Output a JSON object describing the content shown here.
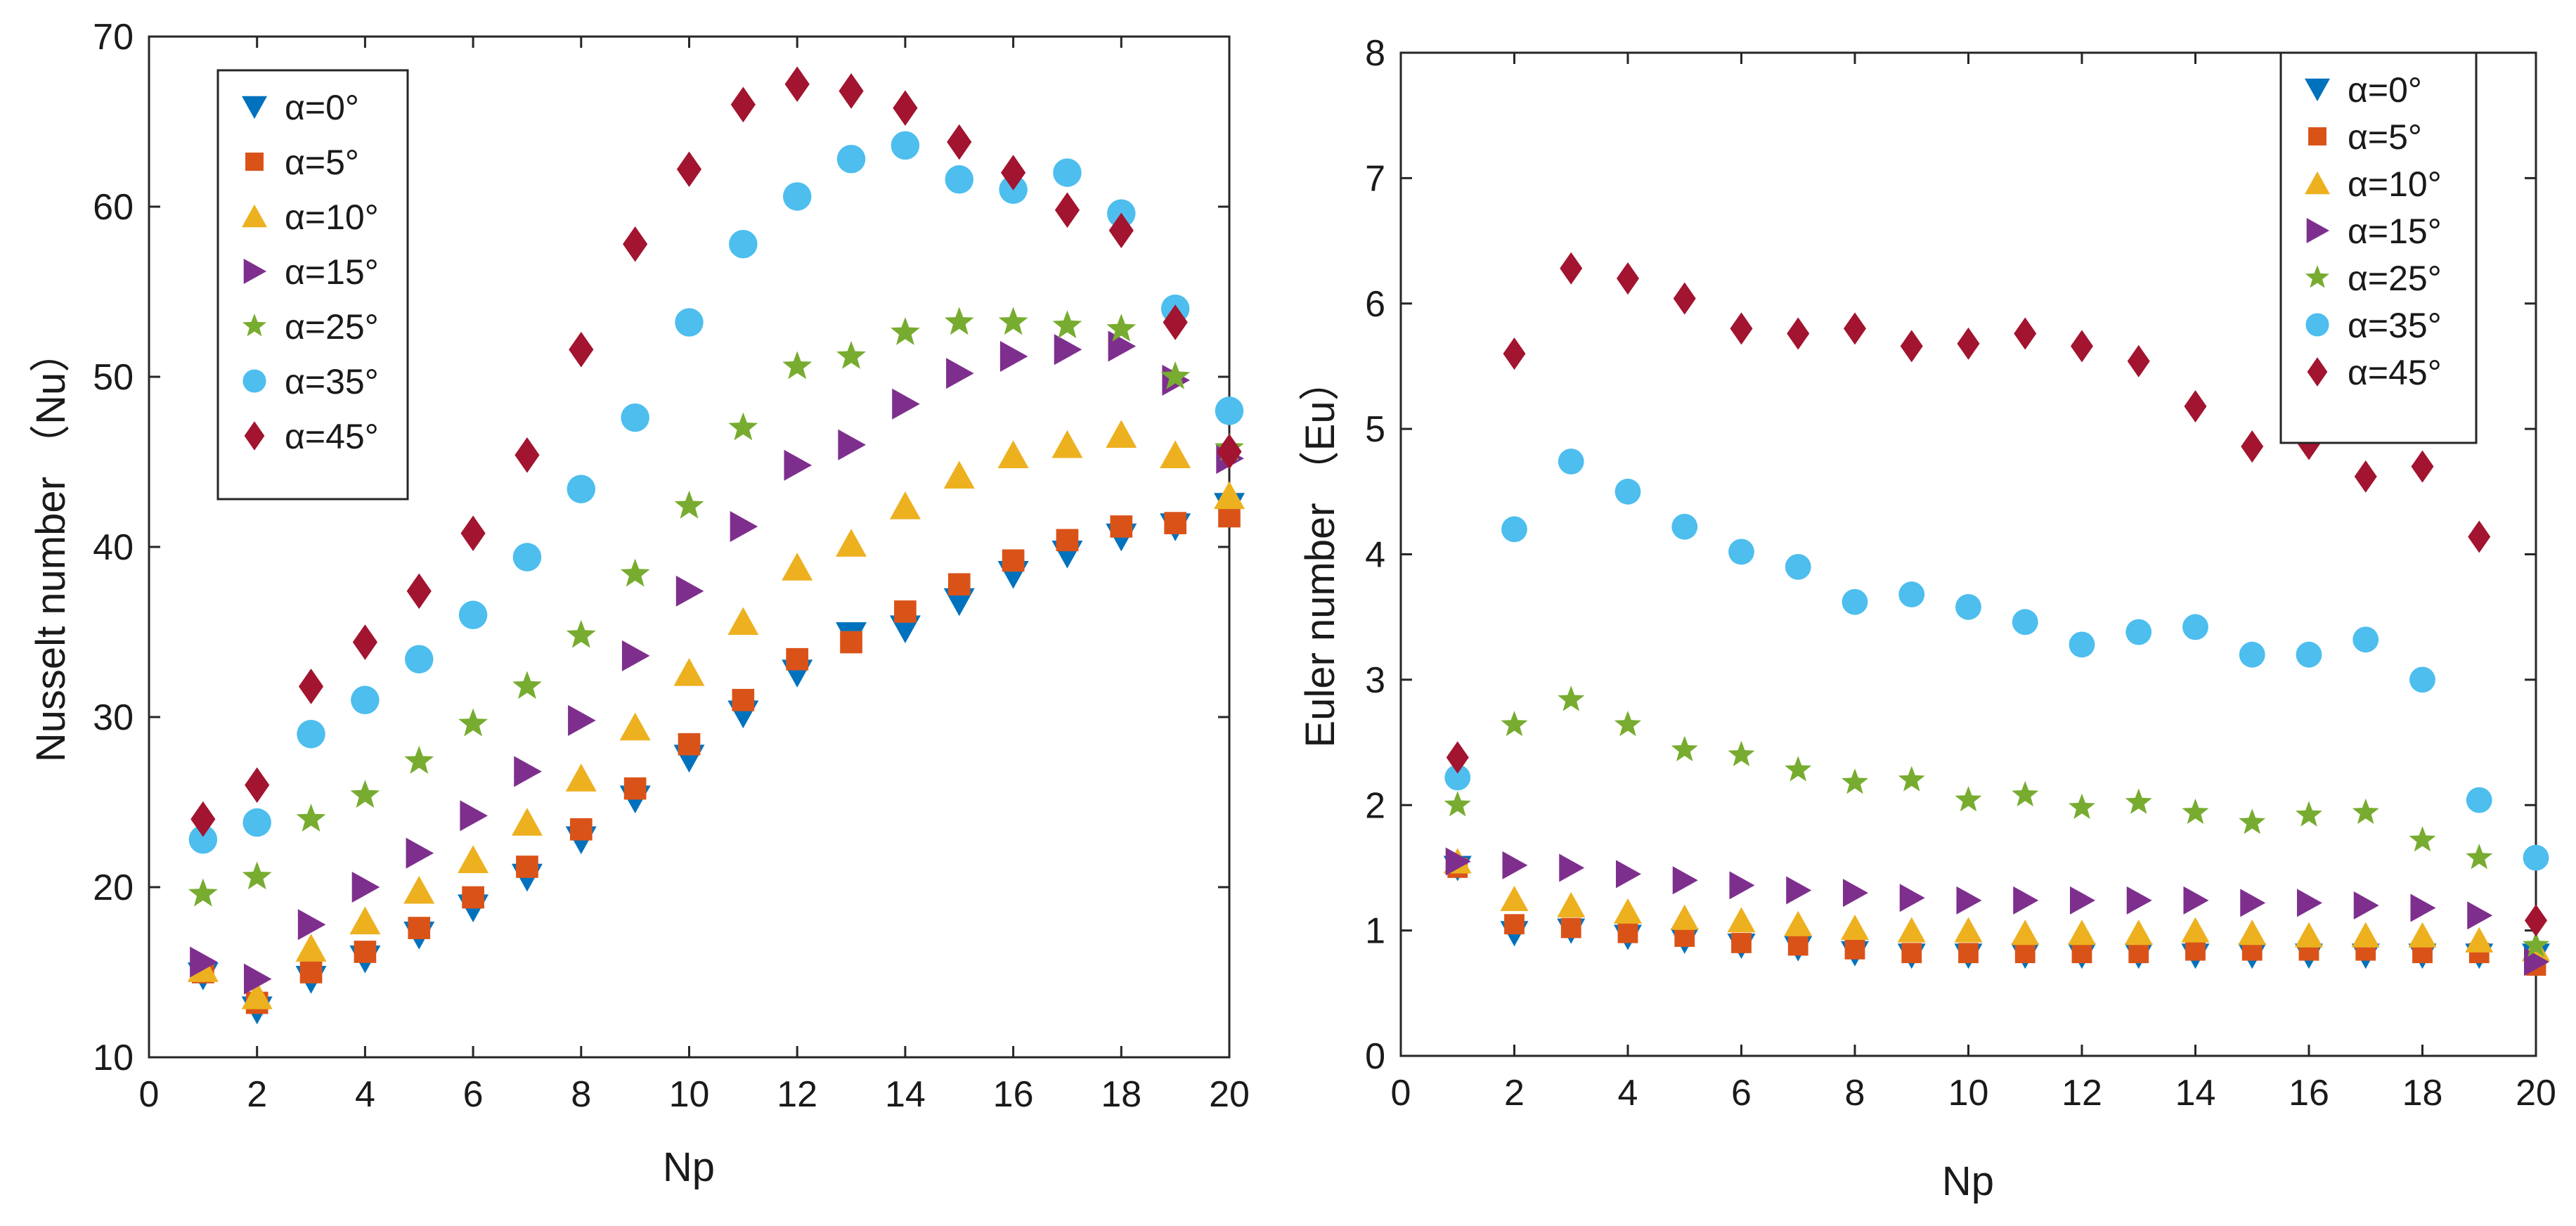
{
  "chart_data": [
    {
      "type": "scatter",
      "xlabel": "Np",
      "ylabel": "Nusselt number （Nu）",
      "xlim": [
        0,
        20
      ],
      "ylim": [
        10,
        70
      ],
      "xticks": [
        0,
        2,
        4,
        6,
        8,
        10,
        12,
        14,
        16,
        18,
        20
      ],
      "yticks": [
        10,
        20,
        30,
        40,
        50,
        60,
        70
      ],
      "grid": false,
      "legend_position": "top-left",
      "x": [
        1,
        2,
        3,
        4,
        5,
        6,
        7,
        8,
        9,
        10,
        11,
        12,
        13,
        14,
        15,
        16,
        17,
        18,
        19,
        20
      ],
      "series": [
        {
          "name": "α=0°",
          "marker": "triangle-down",
          "color": "#0072BD",
          "values": [
            14.8,
            12.8,
            14.6,
            15.8,
            17.2,
            18.8,
            20.6,
            22.8,
            25.2,
            27.6,
            30.2,
            32.6,
            34.8,
            35.2,
            36.8,
            38.4,
            39.6,
            40.6,
            41.2,
            42.4
          ]
        },
        {
          "name": "α=5°",
          "marker": "square",
          "color": "#D95319",
          "values": [
            15.0,
            13.2,
            15.0,
            16.2,
            17.6,
            19.4,
            21.2,
            23.4,
            25.8,
            28.4,
            31.0,
            33.4,
            34.4,
            36.2,
            37.8,
            39.2,
            40.4,
            41.2,
            41.4,
            41.8
          ]
        },
        {
          "name": "α=10°",
          "marker": "triangle-up",
          "color": "#EDB120",
          "values": [
            15.2,
            13.6,
            16.4,
            18.0,
            19.8,
            21.6,
            23.8,
            26.4,
            29.4,
            32.6,
            35.6,
            38.8,
            40.2,
            42.4,
            44.2,
            45.4,
            46.0,
            46.6,
            45.4,
            43.0
          ]
        },
        {
          "name": "α=15°",
          "marker": "triangle-right",
          "color": "#7E2F8E",
          "values": [
            15.6,
            14.6,
            17.8,
            20.0,
            22.0,
            24.2,
            26.8,
            29.8,
            33.6,
            37.4,
            41.2,
            44.8,
            46.0,
            48.4,
            50.2,
            51.2,
            51.6,
            51.8,
            49.8,
            45.2
          ]
        },
        {
          "name": "α=25°",
          "marker": "star",
          "color": "#77AC30",
          "values": [
            19.6,
            20.6,
            24.0,
            25.4,
            27.4,
            29.6,
            31.8,
            34.8,
            38.4,
            42.4,
            47.0,
            50.6,
            51.2,
            52.6,
            53.2,
            53.2,
            53.0,
            52.8,
            50.0,
            45.8
          ]
        },
        {
          "name": "α=35°",
          "marker": "circle",
          "color": "#4DBEEE",
          "values": [
            22.8,
            23.8,
            29.0,
            31.0,
            33.4,
            36.0,
            39.4,
            43.4,
            47.6,
            53.2,
            57.8,
            60.6,
            62.8,
            63.6,
            61.6,
            61.0,
            62.0,
            59.6,
            54.0,
            48.0
          ]
        },
        {
          "name": "α=45°",
          "marker": "diamond",
          "color": "#A2142F",
          "values": [
            24.0,
            26.0,
            31.8,
            34.4,
            37.4,
            40.8,
            45.4,
            51.6,
            57.8,
            62.2,
            66.0,
            67.2,
            66.8,
            65.8,
            63.8,
            62.0,
            59.8,
            58.6,
            53.2,
            45.6
          ]
        }
      ]
    },
    {
      "type": "scatter",
      "xlabel": "Np",
      "ylabel": "Euler number （Eu）",
      "xlim": [
        0,
        20
      ],
      "ylim": [
        0,
        8
      ],
      "xticks": [
        0,
        2,
        4,
        6,
        8,
        10,
        12,
        14,
        16,
        18,
        20
      ],
      "yticks": [
        0,
        1,
        2,
        3,
        4,
        5,
        6,
        7,
        8
      ],
      "grid": false,
      "legend_position": "top-right",
      "x": [
        1,
        2,
        3,
        4,
        5,
        6,
        7,
        8,
        9,
        10,
        11,
        12,
        13,
        14,
        15,
        16,
        17,
        18,
        19,
        20
      ],
      "series": [
        {
          "name": "α=0°",
          "marker": "triangle-down",
          "color": "#0072BD",
          "values": [
            1.5,
            0.98,
            1.0,
            0.95,
            0.92,
            0.88,
            0.86,
            0.82,
            0.8,
            0.8,
            0.8,
            0.8,
            0.8,
            0.8,
            0.8,
            0.8,
            0.8,
            0.8,
            0.8,
            0.8
          ]
        },
        {
          "name": "α=5°",
          "marker": "square",
          "color": "#D95319",
          "values": [
            1.5,
            1.05,
            1.02,
            0.98,
            0.95,
            0.9,
            0.88,
            0.85,
            0.82,
            0.82,
            0.82,
            0.82,
            0.82,
            0.84,
            0.84,
            0.84,
            0.84,
            0.82,
            0.82,
            0.72
          ]
        },
        {
          "name": "α=10°",
          "marker": "triangle-up",
          "color": "#EDB120",
          "values": [
            1.55,
            1.25,
            1.2,
            1.15,
            1.1,
            1.08,
            1.05,
            1.02,
            1.0,
            1.0,
            0.98,
            0.98,
            0.98,
            1.0,
            0.98,
            0.96,
            0.96,
            0.96,
            0.92,
            0.85
          ]
        },
        {
          "name": "α=15°",
          "marker": "triangle-right",
          "color": "#7E2F8E",
          "values": [
            1.55,
            1.52,
            1.5,
            1.45,
            1.4,
            1.36,
            1.32,
            1.3,
            1.26,
            1.24,
            1.24,
            1.24,
            1.24,
            1.24,
            1.22,
            1.22,
            1.2,
            1.18,
            1.12,
            0.75
          ]
        },
        {
          "name": "α=25°",
          "marker": "star",
          "color": "#77AC30",
          "values": [
            2.0,
            2.64,
            2.84,
            2.64,
            2.44,
            2.4,
            2.28,
            2.18,
            2.2,
            2.04,
            2.08,
            1.98,
            2.02,
            1.94,
            1.86,
            1.92,
            1.94,
            1.72,
            1.58,
            0.88
          ]
        },
        {
          "name": "α=35°",
          "marker": "circle",
          "color": "#4DBEEE",
          "values": [
            2.22,
            4.2,
            4.74,
            4.5,
            4.22,
            4.02,
            3.9,
            3.62,
            3.68,
            3.58,
            3.46,
            3.28,
            3.38,
            3.42,
            3.2,
            3.2,
            3.32,
            3.0,
            2.04,
            1.58
          ]
        },
        {
          "name": "α=45°",
          "marker": "diamond",
          "color": "#A2142F",
          "values": [
            2.38,
            5.6,
            6.28,
            6.2,
            6.04,
            5.8,
            5.76,
            5.8,
            5.66,
            5.68,
            5.76,
            5.66,
            5.54,
            5.18,
            4.86,
            4.88,
            4.62,
            4.7,
            4.14,
            1.08
          ]
        }
      ]
    }
  ]
}
